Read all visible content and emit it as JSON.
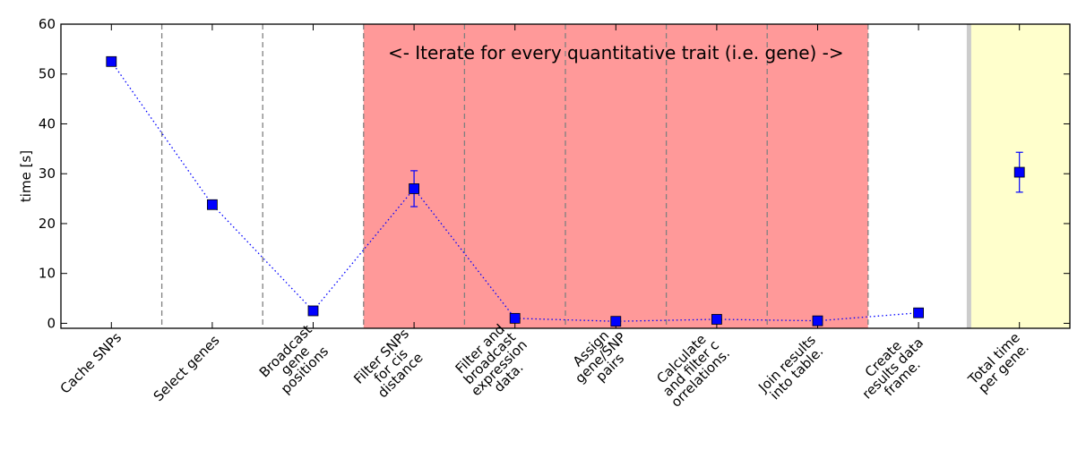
{
  "chart_data": {
    "type": "scatter",
    "title": "",
    "xlabel": "",
    "ylabel": "time [s]",
    "ylim": [
      -1,
      60
    ],
    "yticks": [
      0,
      10,
      20,
      30,
      40,
      50,
      60
    ],
    "grid": false,
    "legend": "none",
    "categories": [
      "Cache SNPs",
      "Select genes",
      "Broadcast\ngene\npositions",
      "Filter SNPs\nfor cis\ndistance",
      "Filter and\nbroadcast\nexpression\ndata.",
      "Assign\ngene/SNP\npairs",
      "Calculate\nand filter c\norrelations.",
      "Join results\ninto table.",
      "Create\nresults data\nframe.",
      "Total time\nper gene."
    ],
    "series": [
      {
        "values": [
          52.5,
          23.8,
          2.5,
          27.0,
          1.0,
          0.4,
          0.8,
          0.5,
          2.1,
          30.3
        ],
        "errors": [
          0,
          0,
          0,
          3.6,
          0,
          0,
          0,
          0,
          0,
          4.0
        ],
        "color": "#0000ff",
        "marker": "square",
        "line_style": "dotted",
        "connected_through_index": 8
      }
    ],
    "annotations": [
      {
        "text": "<- Iterate for every quantitative trait (i.e. gene) ->"
      }
    ],
    "shaded_regions": [
      {
        "from_category": 3,
        "to_category": 7,
        "color": "#ff9999"
      },
      {
        "from_category": 9,
        "to_category": 9,
        "color": "#ffffcc"
      }
    ],
    "separator_color": "#808080",
    "summary_separator_color": "#cccccc"
  }
}
